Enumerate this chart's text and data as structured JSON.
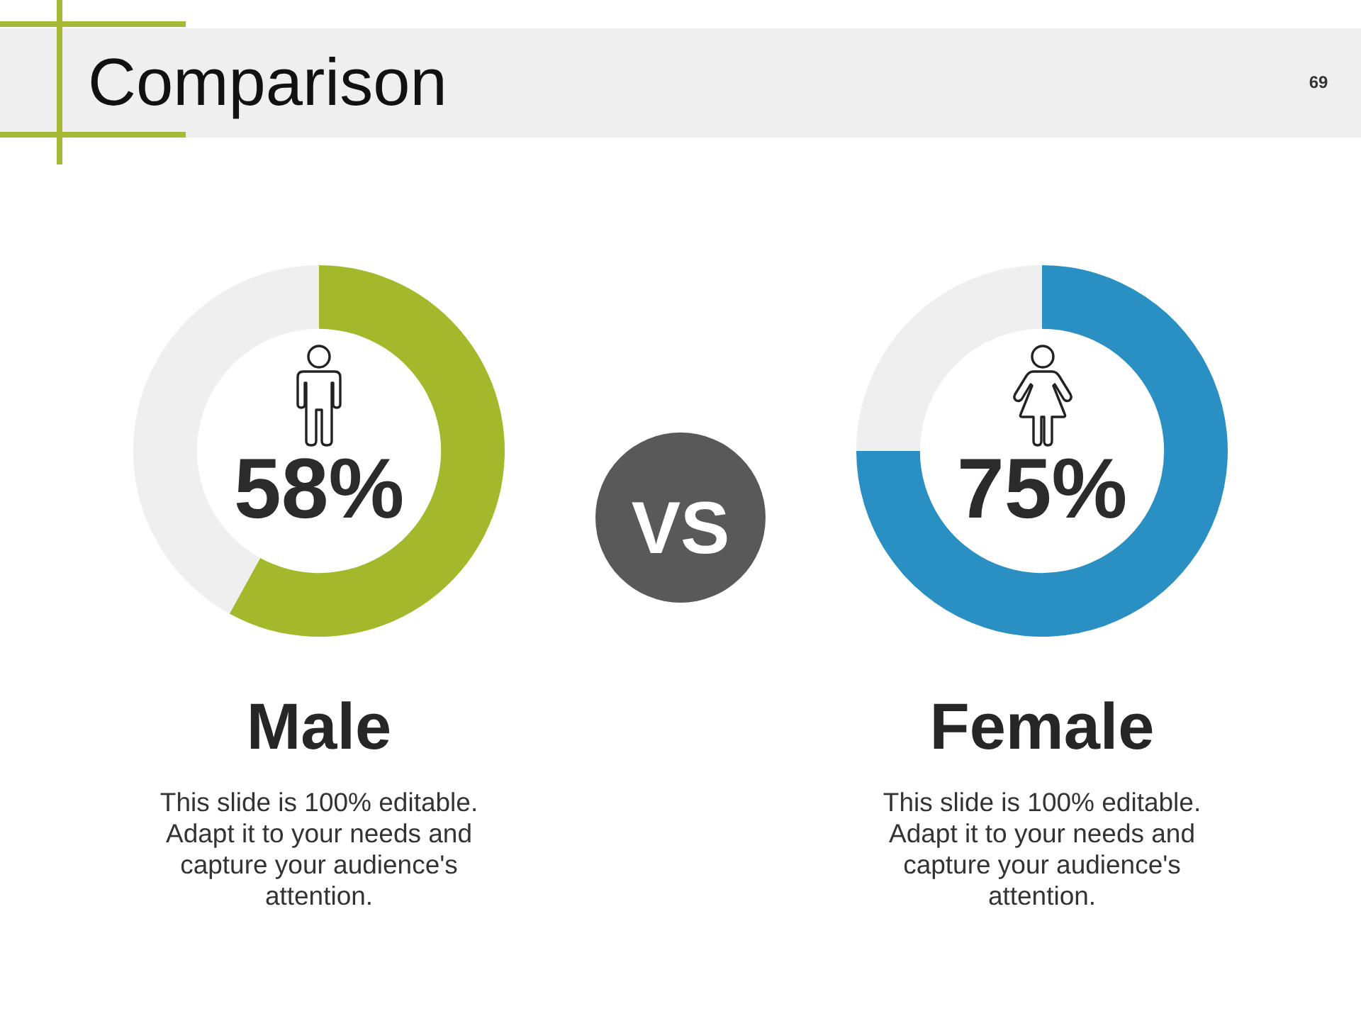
{
  "chart_data": [
    {
      "type": "other",
      "title": "Comparison",
      "annotations": [
        "69",
        "VS"
      ]
    },
    {
      "type": "donut",
      "title": "Male",
      "categories": [
        null,
        null
      ],
      "values": [
        58,
        42
      ],
      "colors": [
        "#a3b82b",
        "#efefef"
      ],
      "value_labels": [
        "58%",
        null
      ],
      "annotations": [
        "This slide is 100% editable. Adapt it to your needs and capture your audience's attention."
      ]
    },
    {
      "type": "donut",
      "title": "Female",
      "categories": [
        null,
        null
      ],
      "values": [
        75,
        25
      ],
      "colors": [
        "#2a90c3",
        "#efefef"
      ],
      "value_labels": [
        "75%",
        null
      ],
      "annotations": [
        "This slide is 100% editable. Adapt it to your needs and capture your audience's attention."
      ]
    }
  ]
}
